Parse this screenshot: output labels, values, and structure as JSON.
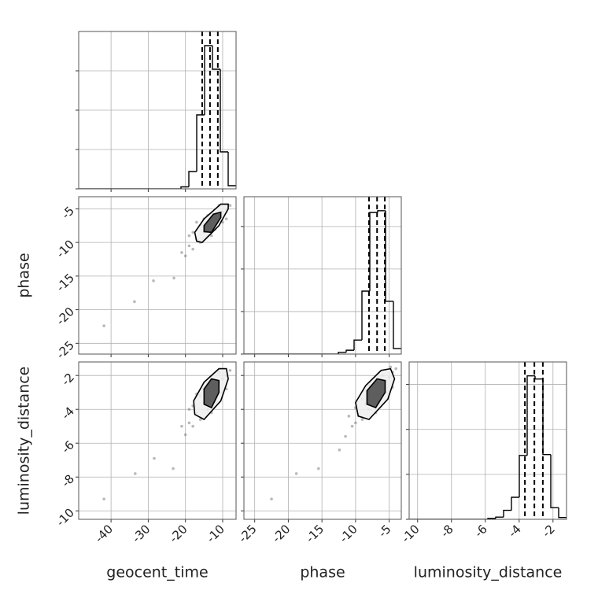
{
  "chart_data": [
    {
      "type": "histogram",
      "xlim": [
        -48.7,
        -6.4
      ],
      "xticks": [
        -40,
        -30,
        -20,
        -10
      ],
      "ylim": [
        0,
        4
      ],
      "yticks": [
        0,
        1,
        2,
        3
      ],
      "bins": [
        -48.7,
        -46.585,
        -44.47,
        -42.355,
        -40.24,
        -38.125,
        -36.01,
        -33.895,
        -31.78,
        -29.665,
        -27.55,
        -25.435,
        -23.32,
        -21.205,
        -19.09,
        -16.975,
        -14.86,
        -12.745,
        -10.63,
        -8.515,
        -6.4
      ],
      "values": [
        0,
        0,
        0,
        0,
        0,
        0,
        0,
        0,
        0,
        0,
        0,
        0,
        0,
        0.05,
        0.44,
        1.88,
        3.64,
        3.04,
        0.94,
        0.08
      ],
      "quantiles": [
        -15.5,
        -13.4,
        -11.3
      ],
      "color": "#000000"
    },
    {
      "type": "scatter",
      "ylabel": "phase",
      "xlim": [
        -48.7,
        -6.4
      ],
      "xticks": [
        -40,
        -30,
        -20,
        -10
      ],
      "ylim": [
        -26.6,
        -3.2
      ],
      "yticks": [
        -25,
        -20,
        -15,
        -10,
        -5
      ],
      "color": "#808080",
      "x": [
        -13,
        -15,
        -11,
        -9,
        -17,
        -19,
        -20,
        -18,
        -14,
        -12,
        -10,
        -8,
        -16,
        -12,
        -14,
        -10,
        -16,
        -18,
        -21,
        -11,
        -15,
        -13,
        -9,
        -19,
        -17,
        -41.9,
        -33.7,
        -28.6,
        -23.1
      ],
      "y": [
        -7.2,
        -8.5,
        -6,
        -5,
        -9.5,
        -10.5,
        -12,
        -11,
        -9,
        -6.5,
        -5.5,
        -4.5,
        -7.5,
        -8,
        -6,
        -7,
        -10,
        -8.5,
        -11.5,
        -4.5,
        -6.5,
        -9,
        -6.5,
        -9,
        -7,
        -22.4,
        -18.8,
        -15.7,
        -15.3
      ],
      "contours": [
        {
          "x": [
            -17,
            -15.5,
            -11,
            -8.5,
            -8.5,
            -10.5,
            -15,
            -17.5
          ],
          "y": [
            -9.8,
            -10,
            -7.5,
            -5,
            -4.3,
            -4.3,
            -6.5,
            -8.5
          ]
        },
        {
          "x": [
            -15,
            -13,
            -10.5,
            -10.5,
            -12.5,
            -15
          ],
          "y": [
            -8.4,
            -8.5,
            -6.3,
            -5.5,
            -5.8,
            -7.5
          ]
        }
      ]
    },
    {
      "type": "histogram",
      "xlim": [
        -26.6,
        -3.2
      ],
      "xticks": [
        -25,
        -20,
        -15,
        -10,
        -5
      ],
      "ylim": [
        0,
        3.7
      ],
      "yticks": [
        0,
        1,
        2,
        3
      ],
      "bins": [
        -26.6,
        -25.43,
        -24.26,
        -23.09,
        -21.92,
        -20.75,
        -19.58,
        -18.41,
        -17.24,
        -16.07,
        -14.9,
        -13.73,
        -12.56,
        -11.39,
        -10.22,
        -9.05,
        -7.88,
        -6.71,
        -5.54,
        -4.37,
        -3.2
      ],
      "values": [
        0,
        0,
        0,
        0,
        0,
        0,
        0,
        0,
        0,
        0,
        0,
        0,
        0.04,
        0.09,
        0.33,
        1.48,
        3.33,
        3.37,
        1.24,
        0.13
      ],
      "quantiles": [
        -8.0,
        -6.8,
        -5.65
      ],
      "color": "#000000"
    },
    {
      "type": "scatter",
      "xlabel": "geocent_time",
      "ylabel": "luminosity_distance",
      "xlim": [
        -48.7,
        -6.4
      ],
      "xticks": [
        -40,
        -30,
        -20,
        -10
      ],
      "ylim": [
        -10.5,
        -1.2
      ],
      "yticks": [
        -10,
        -8,
        -6,
        -4,
        -2
      ],
      "color": "#808080",
      "x": [
        -13,
        -15,
        -11,
        -9,
        -17,
        -19,
        -20,
        -18,
        -14,
        -12,
        -10,
        -8,
        -16,
        -12,
        -14,
        -10,
        -16,
        -18,
        -21,
        -11,
        -15,
        -13,
        -9,
        -19,
        -17,
        -41.9,
        -33.5,
        -28.4,
        -23.3
      ],
      "y": [
        -3,
        -3.6,
        -2.4,
        -2,
        -4.2,
        -4.8,
        -5.5,
        -5,
        -4,
        -2.8,
        -2.2,
        -1.7,
        -3.2,
        -3.6,
        -2.5,
        -3,
        -4.6,
        -3.8,
        -5,
        -1.8,
        -2.8,
        -4.2,
        -2.8,
        -4,
        -3.1,
        -9.3,
        -7.8,
        -6.9,
        -7.5
      ],
      "contours": [
        {
          "x": [
            -17.5,
            -15,
            -10.5,
            -8.5,
            -9,
            -11,
            -15,
            -17.8
          ],
          "y": [
            -4.3,
            -4.6,
            -3.5,
            -2.2,
            -1.6,
            -1.6,
            -2.4,
            -3.5
          ]
        },
        {
          "x": [
            -15,
            -13,
            -11,
            -11,
            -13,
            -15
          ],
          "y": [
            -3.7,
            -3.9,
            -3,
            -2.3,
            -2.2,
            -2.8
          ]
        }
      ]
    },
    {
      "type": "scatter",
      "xlabel": "phase",
      "xlim": [
        -26.6,
        -3.2
      ],
      "xticks": [
        -25,
        -20,
        -15,
        -10,
        -5
      ],
      "ylim": [
        -10.5,
        -1.2
      ],
      "yticks": [
        -10,
        -8,
        -6,
        -4,
        -2
      ],
      "color": "#808080",
      "x": [
        -7,
        -8.5,
        -5.5,
        -4.5,
        -9.5,
        -10.5,
        -11.5,
        -10,
        -8,
        -6.5,
        -5,
        -4,
        -7.5,
        -6.5,
        -8,
        -5.5,
        -9,
        -9,
        -11,
        -4.8,
        -7.8,
        -7,
        -4.5,
        -10,
        -6,
        -22.5,
        -18.8,
        -15.5,
        -12.4
      ],
      "y": [
        -3,
        -3.7,
        -2.3,
        -1.8,
        -4.3,
        -5,
        -5.6,
        -4.8,
        -4,
        -2.6,
        -2.1,
        -1.6,
        -3.3,
        -3.6,
        -2.6,
        -3,
        -4.6,
        -3.4,
        -4.4,
        -1.5,
        -2.4,
        -4.2,
        -2.7,
        -3.9,
        -2,
        -9.3,
        -7.8,
        -7.5,
        -6.4
      ],
      "contours": [
        {
          "x": [
            -9.6,
            -8,
            -5.2,
            -4.2,
            -4.8,
            -6.2,
            -8.5,
            -10
          ],
          "y": [
            -4.4,
            -4.6,
            -3.4,
            -2.2,
            -1.6,
            -1.7,
            -2.6,
            -3.6
          ]
        },
        {
          "x": [
            -8.3,
            -7,
            -5.6,
            -5.6,
            -6.8,
            -8.3
          ],
          "y": [
            -3.7,
            -3.9,
            -3,
            -2.3,
            -2.2,
            -2.9
          ]
        }
      ]
    },
    {
      "type": "histogram",
      "xlabel": "luminosity_distance",
      "xlim": [
        -10.5,
        -1.2
      ],
      "xticks": [
        -10,
        -8,
        -6,
        -4,
        -2
      ],
      "ylim": [
        0,
        3.5
      ],
      "yticks": [
        0,
        1,
        2,
        3
      ],
      "bins": [
        -10.5,
        -10.035,
        -9.57,
        -9.105,
        -8.64,
        -8.175,
        -7.71,
        -7.245,
        -6.78,
        -6.315,
        -5.85,
        -5.385,
        -4.92,
        -4.455,
        -3.99,
        -3.525,
        -3.06,
        -2.595,
        -2.13,
        -1.665,
        -1.2
      ],
      "values": [
        0,
        0,
        0,
        0,
        0,
        0,
        0,
        0,
        0,
        0,
        0.02,
        0.05,
        0.2,
        0.49,
        1.42,
        3.19,
        3.12,
        1.44,
        0.26,
        0.04
      ],
      "quantiles": [
        -3.66,
        -3.1,
        -2.6
      ],
      "color": "#000000"
    }
  ]
}
